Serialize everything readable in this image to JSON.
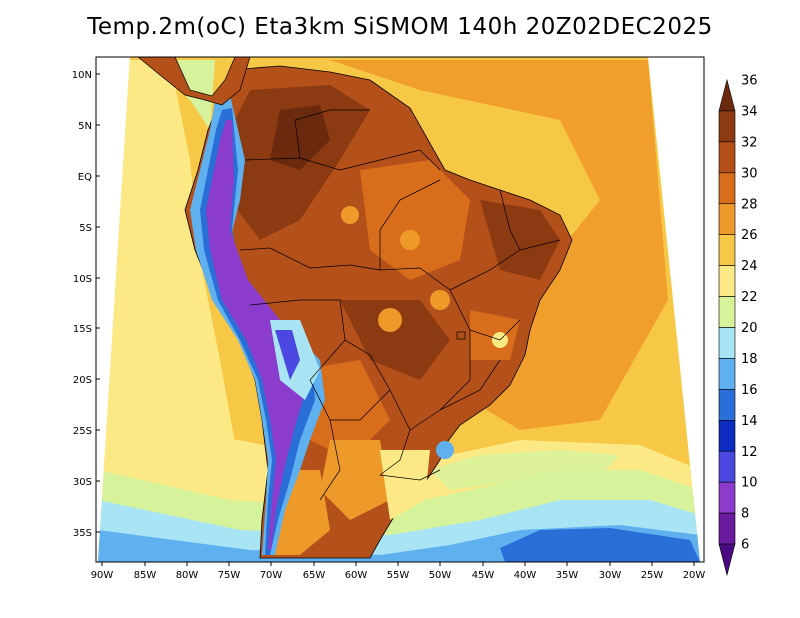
{
  "title": "Temp.2m(oC) Eta3km SiSMOM 140h 20Z02DEC2025",
  "map": {
    "variable": "Temp.2m",
    "units": "oC",
    "model": "Eta3km",
    "run": "SiSMOM",
    "forecast_hour": "140h",
    "valid_time": "20Z02DEC2025",
    "lat_ticks": [
      "10N",
      "5N",
      "EQ",
      "5S",
      "10S",
      "15S",
      "20S",
      "25S",
      "30S",
      "35S"
    ],
    "lon_ticks": [
      "90W",
      "85W",
      "80W",
      "75W",
      "70W",
      "65W",
      "60W",
      "55W",
      "50W",
      "45W",
      "40W",
      "35W",
      "30W",
      "25W",
      "20W"
    ]
  },
  "colorbar": {
    "labels": [
      "36",
      "34",
      "32",
      "30",
      "28",
      "26",
      "24",
      "22",
      "20",
      "18",
      "16",
      "14",
      "12",
      "10",
      "8",
      "6"
    ],
    "levels": [
      36,
      34,
      32,
      30,
      28,
      26,
      24,
      22,
      20,
      18,
      16,
      14,
      12,
      10,
      8,
      6
    ],
    "colors": [
      "#6b2a0e",
      "#8c3a12",
      "#b4501a",
      "#d86d1c",
      "#ee9a2a",
      "#f7c746",
      "#fbe986",
      "#d6f39c",
      "#a8e4f4",
      "#5fb0ef",
      "#2a6fd8",
      "#0b2cbe",
      "#4a48e0",
      "#8b3ccc",
      "#6a1a9e",
      "#4b0a82"
    ]
  }
}
